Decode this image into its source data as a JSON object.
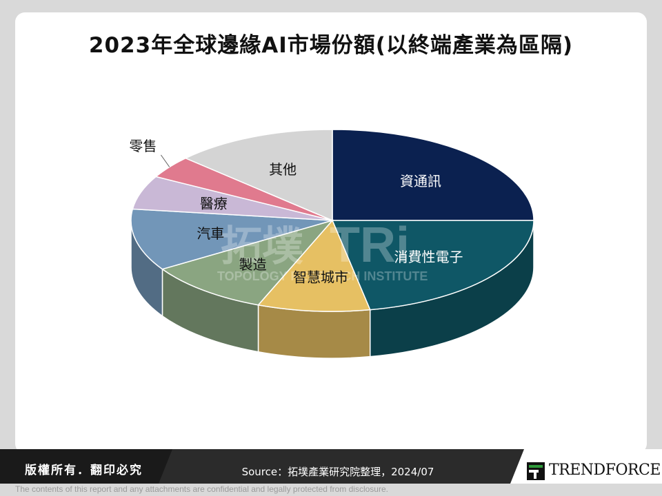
{
  "chart_data": {
    "type": "pie",
    "title": "2023年全球邊緣AI市場份額(以終端產業為區隔)",
    "slices": [
      {
        "label": "資通訊",
        "value": 25,
        "color": "#0b2150"
      },
      {
        "label": "消費性電子",
        "value": 22,
        "color": "#0f5766"
      },
      {
        "label": "智慧城市",
        "value": 9,
        "color": "#e6c063"
      },
      {
        "label": "製造",
        "value": 10,
        "color": "#8aa581"
      },
      {
        "label": "汽車",
        "value": 11,
        "color": "#7296b8"
      },
      {
        "label": "醫療",
        "value": 6,
        "color": "#c9b8d6"
      },
      {
        "label": "零售",
        "value": 4,
        "color": "#e07a8e"
      },
      {
        "label": "其他",
        "value": 13,
        "color": "#d4d4d4"
      }
    ]
  },
  "watermark": {
    "text_cn": "拓墣",
    "text_logo": "TRi",
    "text_sub": "TOPOLOGY RESEARCH INSTITUTE"
  },
  "footer": {
    "copyright": "版權所有．翻印必究",
    "source": "Source：拓墣產業研究院整理，2024/07",
    "brand_main": "TREND",
    "brand_force": "FORCE",
    "disclaimer": "The contents of this report and any attachments are confidential and legally protected from disclosure."
  },
  "colors": {
    "footer_bar": "#2b2b2b",
    "background": "#d9d9d9"
  }
}
